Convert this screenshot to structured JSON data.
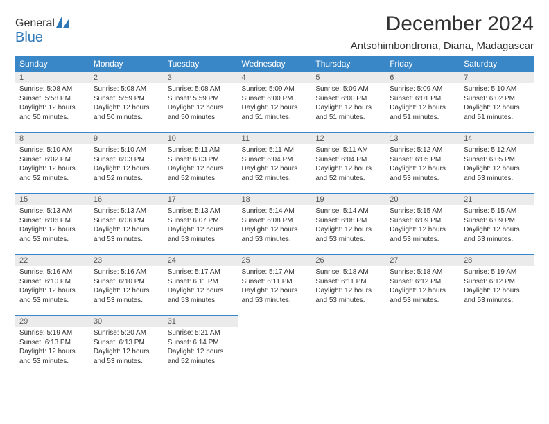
{
  "logo": {
    "text1": "General",
    "text2": "Blue"
  },
  "header": {
    "month_title": "December 2024",
    "location": "Antsohimbondrona, Diana, Madagascar"
  },
  "colors": {
    "header_bg": "#3a87c8",
    "daynum_bg": "#ebebeb",
    "rule": "#3a87c8",
    "logo_accent": "#2f78b7"
  },
  "daynames": [
    "Sunday",
    "Monday",
    "Tuesday",
    "Wednesday",
    "Thursday",
    "Friday",
    "Saturday"
  ],
  "weeks": [
    [
      {
        "n": "1",
        "sr": "Sunrise: 5:08 AM",
        "ss": "Sunset: 5:58 PM",
        "dl": "Daylight: 12 hours and 50 minutes."
      },
      {
        "n": "2",
        "sr": "Sunrise: 5:08 AM",
        "ss": "Sunset: 5:59 PM",
        "dl": "Daylight: 12 hours and 50 minutes."
      },
      {
        "n": "3",
        "sr": "Sunrise: 5:08 AM",
        "ss": "Sunset: 5:59 PM",
        "dl": "Daylight: 12 hours and 50 minutes."
      },
      {
        "n": "4",
        "sr": "Sunrise: 5:09 AM",
        "ss": "Sunset: 6:00 PM",
        "dl": "Daylight: 12 hours and 51 minutes."
      },
      {
        "n": "5",
        "sr": "Sunrise: 5:09 AM",
        "ss": "Sunset: 6:00 PM",
        "dl": "Daylight: 12 hours and 51 minutes."
      },
      {
        "n": "6",
        "sr": "Sunrise: 5:09 AM",
        "ss": "Sunset: 6:01 PM",
        "dl": "Daylight: 12 hours and 51 minutes."
      },
      {
        "n": "7",
        "sr": "Sunrise: 5:10 AM",
        "ss": "Sunset: 6:02 PM",
        "dl": "Daylight: 12 hours and 51 minutes."
      }
    ],
    [
      {
        "n": "8",
        "sr": "Sunrise: 5:10 AM",
        "ss": "Sunset: 6:02 PM",
        "dl": "Daylight: 12 hours and 52 minutes."
      },
      {
        "n": "9",
        "sr": "Sunrise: 5:10 AM",
        "ss": "Sunset: 6:03 PM",
        "dl": "Daylight: 12 hours and 52 minutes."
      },
      {
        "n": "10",
        "sr": "Sunrise: 5:11 AM",
        "ss": "Sunset: 6:03 PM",
        "dl": "Daylight: 12 hours and 52 minutes."
      },
      {
        "n": "11",
        "sr": "Sunrise: 5:11 AM",
        "ss": "Sunset: 6:04 PM",
        "dl": "Daylight: 12 hours and 52 minutes."
      },
      {
        "n": "12",
        "sr": "Sunrise: 5:11 AM",
        "ss": "Sunset: 6:04 PM",
        "dl": "Daylight: 12 hours and 52 minutes."
      },
      {
        "n": "13",
        "sr": "Sunrise: 5:12 AM",
        "ss": "Sunset: 6:05 PM",
        "dl": "Daylight: 12 hours and 53 minutes."
      },
      {
        "n": "14",
        "sr": "Sunrise: 5:12 AM",
        "ss": "Sunset: 6:05 PM",
        "dl": "Daylight: 12 hours and 53 minutes."
      }
    ],
    [
      {
        "n": "15",
        "sr": "Sunrise: 5:13 AM",
        "ss": "Sunset: 6:06 PM",
        "dl": "Daylight: 12 hours and 53 minutes."
      },
      {
        "n": "16",
        "sr": "Sunrise: 5:13 AM",
        "ss": "Sunset: 6:06 PM",
        "dl": "Daylight: 12 hours and 53 minutes."
      },
      {
        "n": "17",
        "sr": "Sunrise: 5:13 AM",
        "ss": "Sunset: 6:07 PM",
        "dl": "Daylight: 12 hours and 53 minutes."
      },
      {
        "n": "18",
        "sr": "Sunrise: 5:14 AM",
        "ss": "Sunset: 6:08 PM",
        "dl": "Daylight: 12 hours and 53 minutes."
      },
      {
        "n": "19",
        "sr": "Sunrise: 5:14 AM",
        "ss": "Sunset: 6:08 PM",
        "dl": "Daylight: 12 hours and 53 minutes."
      },
      {
        "n": "20",
        "sr": "Sunrise: 5:15 AM",
        "ss": "Sunset: 6:09 PM",
        "dl": "Daylight: 12 hours and 53 minutes."
      },
      {
        "n": "21",
        "sr": "Sunrise: 5:15 AM",
        "ss": "Sunset: 6:09 PM",
        "dl": "Daylight: 12 hours and 53 minutes."
      }
    ],
    [
      {
        "n": "22",
        "sr": "Sunrise: 5:16 AM",
        "ss": "Sunset: 6:10 PM",
        "dl": "Daylight: 12 hours and 53 minutes."
      },
      {
        "n": "23",
        "sr": "Sunrise: 5:16 AM",
        "ss": "Sunset: 6:10 PM",
        "dl": "Daylight: 12 hours and 53 minutes."
      },
      {
        "n": "24",
        "sr": "Sunrise: 5:17 AM",
        "ss": "Sunset: 6:11 PM",
        "dl": "Daylight: 12 hours and 53 minutes."
      },
      {
        "n": "25",
        "sr": "Sunrise: 5:17 AM",
        "ss": "Sunset: 6:11 PM",
        "dl": "Daylight: 12 hours and 53 minutes."
      },
      {
        "n": "26",
        "sr": "Sunrise: 5:18 AM",
        "ss": "Sunset: 6:11 PM",
        "dl": "Daylight: 12 hours and 53 minutes."
      },
      {
        "n": "27",
        "sr": "Sunrise: 5:18 AM",
        "ss": "Sunset: 6:12 PM",
        "dl": "Daylight: 12 hours and 53 minutes."
      },
      {
        "n": "28",
        "sr": "Sunrise: 5:19 AM",
        "ss": "Sunset: 6:12 PM",
        "dl": "Daylight: 12 hours and 53 minutes."
      }
    ],
    [
      {
        "n": "29",
        "sr": "Sunrise: 5:19 AM",
        "ss": "Sunset: 6:13 PM",
        "dl": "Daylight: 12 hours and 53 minutes."
      },
      {
        "n": "30",
        "sr": "Sunrise: 5:20 AM",
        "ss": "Sunset: 6:13 PM",
        "dl": "Daylight: 12 hours and 53 minutes."
      },
      {
        "n": "31",
        "sr": "Sunrise: 5:21 AM",
        "ss": "Sunset: 6:14 PM",
        "dl": "Daylight: 12 hours and 52 minutes."
      },
      null,
      null,
      null,
      null
    ]
  ]
}
